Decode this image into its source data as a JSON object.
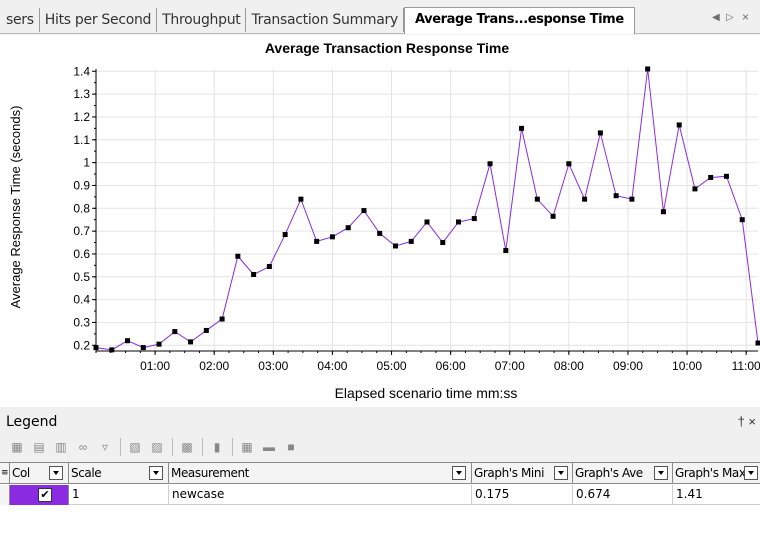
{
  "tabs": [
    {
      "label": "sers",
      "active": false
    },
    {
      "label": "Hits per Second",
      "active": false
    },
    {
      "label": "Throughput",
      "active": false
    },
    {
      "label": "Transaction Summary",
      "active": false
    },
    {
      "label": "Average Trans...esponse Time",
      "active": true
    }
  ],
  "chart_data": {
    "type": "line",
    "title": "Average Transaction Response Time",
    "xlabel": "Elapsed scenario time mm:ss",
    "ylabel": "Average Response Time (seconds)",
    "xlim": [
      0,
      672
    ],
    "ylim": [
      0.175,
      1.41
    ],
    "x_ticks": [
      60,
      120,
      180,
      240,
      300,
      360,
      420,
      480,
      540,
      600,
      660
    ],
    "x_tick_labels": [
      "01:00",
      "02:00",
      "03:00",
      "04:00",
      "05:00",
      "06:00",
      "07:00",
      "08:00",
      "09:00",
      "10:00",
      "11:00"
    ],
    "y_ticks": [
      0.2,
      0.3,
      0.4,
      0.5,
      0.6,
      0.7,
      0.8,
      0.9,
      1,
      1.1,
      1.2,
      1.3,
      1.4
    ],
    "y_tick_labels": [
      "0.2",
      "0.3",
      "0.4",
      "0.5",
      "0.6",
      "0.7",
      "0.8",
      "0.9",
      "1",
      "1.1",
      "1.2",
      "1.3",
      "1.4"
    ],
    "grid": true,
    "color": "#8b2be2",
    "x": [
      0,
      16,
      32,
      48,
      64,
      80,
      96,
      112,
      128,
      144,
      160,
      176,
      192,
      208,
      224,
      240,
      256,
      272,
      288,
      304,
      320,
      336,
      352,
      368,
      384,
      400,
      416,
      432,
      448,
      464,
      480,
      496,
      512,
      528,
      544,
      560,
      576,
      592,
      608,
      624,
      640,
      656,
      672
    ],
    "y": [
      0.19,
      0.18,
      0.22,
      0.19,
      0.205,
      0.26,
      0.215,
      0.265,
      0.315,
      0.59,
      0.51,
      0.545,
      0.685,
      0.84,
      0.655,
      0.675,
      0.715,
      0.79,
      0.69,
      0.635,
      0.655,
      0.74,
      0.65,
      0.74,
      0.755,
      0.995,
      0.615,
      1.15,
      0.84,
      0.765,
      0.995,
      0.84,
      1.13,
      0.855,
      0.84,
      1.41,
      0.785,
      1.165,
      0.885,
      0.935,
      0.94,
      0.75,
      0.21
    ]
  },
  "legend": {
    "title": "Legend",
    "pin": "† ×",
    "columns": {
      "color": "Col",
      "scale": "Scale",
      "measurement": "Measurement",
      "min": "Graph's Mini",
      "avg": "Graph's Ave",
      "max": "Graph's Max"
    },
    "rows": [
      {
        "checked": "✔",
        "scale": "1",
        "measurement": "newcase",
        "min": "0.175",
        "avg": "0.674",
        "max": "1.41",
        "color": "#8a2be2"
      }
    ]
  }
}
